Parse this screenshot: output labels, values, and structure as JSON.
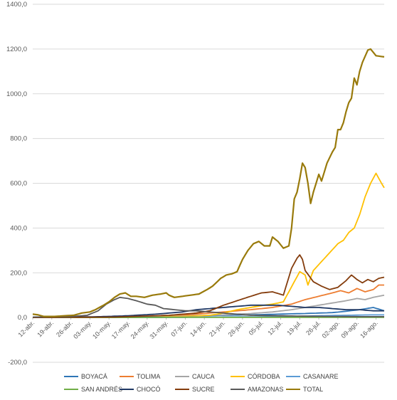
{
  "chart_data": {
    "type": "line",
    "title": "",
    "xlabel": "",
    "ylabel": "",
    "ylim": [
      -200,
      1400
    ],
    "yticks": [
      "-200,0",
      "0,0",
      "200,0",
      "400,0",
      "600,0",
      "800,0",
      "1000,0",
      "1200,0",
      "1400,0"
    ],
    "ytick_values": [
      -200,
      0,
      200,
      400,
      600,
      800,
      1000,
      1200,
      1400
    ],
    "x_start": "12-abr.",
    "x_end": "19-ago.",
    "n_points": 130,
    "xticks": [
      "12-abr.",
      "19-abr.",
      "26-abr.",
      "03-may.",
      "10-may.",
      "17-may.",
      "24-may.",
      "31-may.",
      "07-jun.",
      "14-jun.",
      "21-jun.",
      "28-jun.",
      "05-jul.",
      "12-jul.",
      "19-jul.",
      "26-jul.",
      "02-ago.",
      "09-ago.",
      "16-ago."
    ],
    "xtick_index": [
      0,
      7,
      14,
      21,
      28,
      35,
      42,
      49,
      56,
      63,
      70,
      77,
      84,
      91,
      98,
      105,
      112,
      119,
      126
    ],
    "grid": {
      "horizontal": true,
      "vertical": false
    },
    "legend_position": "bottom",
    "series": [
      {
        "name": "BOYACÁ",
        "color": "#2e75b6",
        "points": [
          [
            0,
            0
          ],
          [
            30,
            2
          ],
          [
            50,
            5
          ],
          [
            60,
            8
          ],
          [
            70,
            10
          ],
          [
            80,
            12
          ],
          [
            90,
            15
          ],
          [
            100,
            18
          ],
          [
            110,
            22
          ],
          [
            115,
            28
          ],
          [
            120,
            35
          ],
          [
            125,
            45
          ],
          [
            129,
            30
          ]
        ]
      },
      {
        "name": "TOLIMA",
        "color": "#ed7d31",
        "points": [
          [
            0,
            0
          ],
          [
            30,
            2
          ],
          [
            50,
            8
          ],
          [
            60,
            15
          ],
          [
            70,
            25
          ],
          [
            80,
            35
          ],
          [
            88,
            45
          ],
          [
            95,
            60
          ],
          [
            100,
            80
          ],
          [
            105,
            95
          ],
          [
            110,
            110
          ],
          [
            113,
            120
          ],
          [
            116,
            110
          ],
          [
            119,
            130
          ],
          [
            122,
            115
          ],
          [
            125,
            125
          ],
          [
            127,
            145
          ],
          [
            129,
            145
          ]
        ]
      },
      {
        "name": "CAUCA",
        "color": "#a5a5a5",
        "points": [
          [
            0,
            0
          ],
          [
            30,
            2
          ],
          [
            50,
            5
          ],
          [
            60,
            8
          ],
          [
            70,
            12
          ],
          [
            80,
            18
          ],
          [
            88,
            25
          ],
          [
            95,
            35
          ],
          [
            100,
            45
          ],
          [
            105,
            55
          ],
          [
            110,
            65
          ],
          [
            115,
            75
          ],
          [
            119,
            85
          ],
          [
            122,
            80
          ],
          [
            125,
            90
          ],
          [
            127,
            95
          ],
          [
            129,
            100
          ]
        ]
      },
      {
        "name": "CÓRDOBA",
        "color": "#ffc000",
        "points": [
          [
            0,
            0
          ],
          [
            30,
            2
          ],
          [
            55,
            5
          ],
          [
            65,
            10
          ],
          [
            70,
            20
          ],
          [
            75,
            35
          ],
          [
            80,
            45
          ],
          [
            85,
            55
          ],
          [
            88,
            60
          ],
          [
            92,
            70
          ],
          [
            96,
            160
          ],
          [
            98,
            205
          ],
          [
            100,
            190
          ],
          [
            101,
            145
          ],
          [
            103,
            210
          ],
          [
            106,
            250
          ],
          [
            109,
            290
          ],
          [
            112,
            330
          ],
          [
            114,
            345
          ],
          [
            116,
            380
          ],
          [
            118,
            400
          ],
          [
            120,
            460
          ],
          [
            122,
            540
          ],
          [
            124,
            600
          ],
          [
            126,
            645
          ],
          [
            128,
            600
          ],
          [
            129,
            580
          ]
        ]
      },
      {
        "name": "CASANARE",
        "color": "#5b9bd5",
        "points": [
          [
            0,
            0
          ],
          [
            40,
            1
          ],
          [
            60,
            2
          ],
          [
            80,
            3
          ],
          [
            95,
            5
          ],
          [
            105,
            8
          ],
          [
            115,
            10
          ],
          [
            125,
            12
          ],
          [
            129,
            12
          ]
        ]
      },
      {
        "name": "SAN ANDRÉS",
        "color": "#70ad47",
        "points": [
          [
            0,
            0
          ],
          [
            40,
            0
          ],
          [
            70,
            1
          ],
          [
            90,
            1
          ],
          [
            110,
            1
          ],
          [
            129,
            1
          ]
        ]
      },
      {
        "name": "CHOCÓ",
        "color": "#1f3864",
        "points": [
          [
            0,
            0
          ],
          [
            15,
            2
          ],
          [
            25,
            4
          ],
          [
            35,
            8
          ],
          [
            45,
            15
          ],
          [
            50,
            20
          ],
          [
            55,
            25
          ],
          [
            60,
            35
          ],
          [
            65,
            40
          ],
          [
            70,
            45
          ],
          [
            75,
            50
          ],
          [
            80,
            55
          ],
          [
            85,
            55
          ],
          [
            90,
            55
          ],
          [
            95,
            50
          ],
          [
            100,
            45
          ],
          [
            105,
            45
          ],
          [
            110,
            40
          ],
          [
            115,
            35
          ],
          [
            120,
            35
          ],
          [
            125,
            30
          ],
          [
            129,
            30
          ]
        ]
      },
      {
        "name": "SUCRE",
        "color": "#843c0c",
        "points": [
          [
            0,
            0
          ],
          [
            30,
            2
          ],
          [
            50,
            10
          ],
          [
            60,
            20
          ],
          [
            65,
            30
          ],
          [
            70,
            55
          ],
          [
            75,
            75
          ],
          [
            80,
            95
          ],
          [
            84,
            110
          ],
          [
            88,
            115
          ],
          [
            92,
            100
          ],
          [
            95,
            220
          ],
          [
            97,
            265
          ],
          [
            98,
            280
          ],
          [
            99,
            260
          ],
          [
            100,
            210
          ],
          [
            103,
            160
          ],
          [
            106,
            140
          ],
          [
            109,
            125
          ],
          [
            112,
            135
          ],
          [
            115,
            165
          ],
          [
            117,
            190
          ],
          [
            119,
            170
          ],
          [
            121,
            155
          ],
          [
            123,
            170
          ],
          [
            125,
            160
          ],
          [
            127,
            175
          ],
          [
            129,
            180
          ]
        ]
      },
      {
        "name": "AMAZONAS",
        "color": "#595959",
        "points": [
          [
            0,
            2
          ],
          [
            5,
            3
          ],
          [
            10,
            4
          ],
          [
            15,
            5
          ],
          [
            20,
            10
          ],
          [
            24,
            30
          ],
          [
            27,
            60
          ],
          [
            30,
            80
          ],
          [
            32,
            90
          ],
          [
            35,
            85
          ],
          [
            38,
            75
          ],
          [
            42,
            60
          ],
          [
            45,
            55
          ],
          [
            48,
            40
          ],
          [
            52,
            35
          ],
          [
            56,
            30
          ],
          [
            60,
            30
          ],
          [
            65,
            25
          ],
          [
            70,
            20
          ],
          [
            75,
            15
          ],
          [
            80,
            10
          ],
          [
            90,
            8
          ],
          [
            100,
            6
          ],
          [
            110,
            5
          ],
          [
            120,
            4
          ],
          [
            129,
            4
          ]
        ]
      },
      {
        "name": "TOTAL",
        "color": "#997a0b",
        "points": [
          [
            0,
            15
          ],
          [
            2,
            12
          ],
          [
            4,
            5
          ],
          [
            8,
            5
          ],
          [
            12,
            8
          ],
          [
            15,
            10
          ],
          [
            18,
            20
          ],
          [
            21,
            25
          ],
          [
            23,
            35
          ],
          [
            26,
            55
          ],
          [
            28,
            70
          ],
          [
            30,
            90
          ],
          [
            32,
            105
          ],
          [
            34,
            110
          ],
          [
            36,
            95
          ],
          [
            38,
            95
          ],
          [
            41,
            90
          ],
          [
            44,
            100
          ],
          [
            47,
            105
          ],
          [
            49,
            110
          ],
          [
            50,
            100
          ],
          [
            52,
            90
          ],
          [
            55,
            95
          ],
          [
            58,
            100
          ],
          [
            61,
            105
          ],
          [
            64,
            125
          ],
          [
            66,
            140
          ],
          [
            69,
            175
          ],
          [
            71,
            190
          ],
          [
            73,
            195
          ],
          [
            75,
            205
          ],
          [
            77,
            260
          ],
          [
            79,
            300
          ],
          [
            81,
            330
          ],
          [
            83,
            340
          ],
          [
            85,
            320
          ],
          [
            87,
            320
          ],
          [
            88,
            360
          ],
          [
            90,
            340
          ],
          [
            92,
            310
          ],
          [
            94,
            320
          ],
          [
            95,
            400
          ],
          [
            96,
            530
          ],
          [
            97,
            560
          ],
          [
            98,
            620
          ],
          [
            99,
            690
          ],
          [
            100,
            670
          ],
          [
            101,
            600
          ],
          [
            102,
            510
          ],
          [
            103,
            560
          ],
          [
            105,
            640
          ],
          [
            106,
            610
          ],
          [
            108,
            690
          ],
          [
            110,
            740
          ],
          [
            111,
            760
          ],
          [
            112,
            840
          ],
          [
            113,
            840
          ],
          [
            114,
            870
          ],
          [
            115,
            920
          ],
          [
            116,
            960
          ],
          [
            117,
            980
          ],
          [
            118,
            1070
          ],
          [
            119,
            1040
          ],
          [
            120,
            1100
          ],
          [
            121,
            1140
          ],
          [
            123,
            1195
          ],
          [
            124,
            1200
          ],
          [
            126,
            1170
          ],
          [
            129,
            1165
          ]
        ]
      }
    ]
  }
}
